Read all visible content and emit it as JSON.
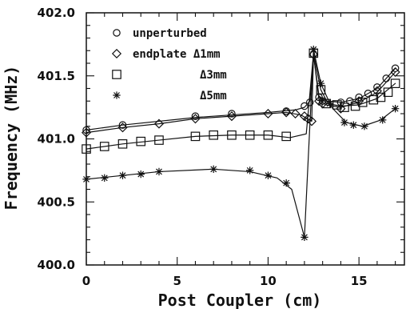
{
  "chart_data": {
    "type": "line",
    "title": "",
    "xlabel": "Post Coupler (cm)",
    "ylabel": "Frequency (MHz)",
    "xlim": [
      0,
      17.5
    ],
    "ylim": [
      400.0,
      402.0
    ],
    "x_ticks": [
      0,
      5,
      10,
      15
    ],
    "x_tick_labels": [
      "0",
      "5",
      "10",
      "15"
    ],
    "y_ticks": [
      400.0,
      400.5,
      401.0,
      401.5,
      402.0
    ],
    "y_tick_labels": [
      "400.0",
      "400.5",
      "401.0",
      "401.5",
      "402.0"
    ],
    "grid": false,
    "legend_position": "top-left",
    "series": [
      {
        "name": "unperturbed",
        "legend_label": "unperturbed",
        "marker": "circle",
        "points": [
          {
            "x": 0,
            "y": 401.07
          },
          {
            "x": 2,
            "y": 401.11
          },
          {
            "x": 6,
            "y": 401.18
          },
          {
            "x": 8,
            "y": 401.2
          },
          {
            "x": 11,
            "y": 401.22
          },
          {
            "x": 12,
            "y": 401.26
          },
          {
            "x": 12.3,
            "y": 401.29
          },
          {
            "x": 12.5,
            "y": 401.67
          },
          {
            "x": 12.8,
            "y": 401.33
          },
          {
            "x": 13,
            "y": 401.3
          },
          {
            "x": 14,
            "y": 401.29
          },
          {
            "x": 14.5,
            "y": 401.3
          },
          {
            "x": 15,
            "y": 401.33
          },
          {
            "x": 15.5,
            "y": 401.36
          },
          {
            "x": 16,
            "y": 401.41
          },
          {
            "x": 16.5,
            "y": 401.48
          },
          {
            "x": 17,
            "y": 401.56
          }
        ],
        "smooth_curve": [
          {
            "x": 0,
            "y": 401.07
          },
          {
            "x": 2,
            "y": 401.11
          },
          {
            "x": 6,
            "y": 401.17
          },
          {
            "x": 8,
            "y": 401.19
          },
          {
            "x": 10,
            "y": 401.21
          },
          {
            "x": 11.5,
            "y": 401.23
          },
          {
            "x": 12,
            "y": 401.25
          },
          {
            "x": 12.3,
            "y": 401.3
          },
          {
            "x": 12.5,
            "y": 401.67
          },
          {
            "x": 12.8,
            "y": 401.34
          },
          {
            "x": 13.2,
            "y": 401.3
          },
          {
            "x": 14,
            "y": 401.29
          },
          {
            "x": 15,
            "y": 401.32
          },
          {
            "x": 16,
            "y": 401.4
          },
          {
            "x": 17,
            "y": 401.56
          }
        ]
      },
      {
        "name": "endplate Δ1mm",
        "legend_label": "endplate Δ1mm",
        "marker": "diamond",
        "points": [
          {
            "x": 0,
            "y": 401.05
          },
          {
            "x": 2,
            "y": 401.09
          },
          {
            "x": 4,
            "y": 401.12
          },
          {
            "x": 6,
            "y": 401.16
          },
          {
            "x": 8,
            "y": 401.18
          },
          {
            "x": 10,
            "y": 401.2
          },
          {
            "x": 11,
            "y": 401.21
          },
          {
            "x": 11.5,
            "y": 401.2
          },
          {
            "x": 12,
            "y": 401.18
          },
          {
            "x": 12.2,
            "y": 401.16
          },
          {
            "x": 12.4,
            "y": 401.14
          },
          {
            "x": 12.5,
            "y": 401.67
          },
          {
            "x": 12.8,
            "y": 401.3
          },
          {
            "x": 13,
            "y": 401.28
          },
          {
            "x": 14,
            "y": 401.24
          },
          {
            "x": 15,
            "y": 401.3
          },
          {
            "x": 16,
            "y": 401.38
          },
          {
            "x": 17,
            "y": 401.53
          }
        ],
        "smooth_curve": [
          {
            "x": 0,
            "y": 401.05
          },
          {
            "x": 2,
            "y": 401.09
          },
          {
            "x": 4,
            "y": 401.12
          },
          {
            "x": 6,
            "y": 401.16
          },
          {
            "x": 8,
            "y": 401.18
          },
          {
            "x": 10,
            "y": 401.2
          },
          {
            "x": 11,
            "y": 401.21
          },
          {
            "x": 11.8,
            "y": 401.19
          },
          {
            "x": 12.4,
            "y": 401.14
          },
          {
            "x": 12.5,
            "y": 401.67
          },
          {
            "x": 12.8,
            "y": 401.31
          },
          {
            "x": 13.2,
            "y": 401.27
          },
          {
            "x": 14,
            "y": 401.25
          },
          {
            "x": 15,
            "y": 401.29
          },
          {
            "x": 16,
            "y": 401.37
          },
          {
            "x": 17,
            "y": 401.53
          }
        ]
      },
      {
        "name": "Δ3mm",
        "legend_label": "Δ3mm",
        "marker": "square",
        "points": [
          {
            "x": 0,
            "y": 400.92
          },
          {
            "x": 1,
            "y": 400.94
          },
          {
            "x": 2,
            "y": 400.96
          },
          {
            "x": 3,
            "y": 400.98
          },
          {
            "x": 4,
            "y": 400.99
          },
          {
            "x": 6,
            "y": 401.02
          },
          {
            "x": 7,
            "y": 401.03
          },
          {
            "x": 8,
            "y": 401.03
          },
          {
            "x": 9,
            "y": 401.03
          },
          {
            "x": 10,
            "y": 401.03
          },
          {
            "x": 11,
            "y": 401.02
          },
          {
            "x": 12.5,
            "y": 401.68
          },
          {
            "x": 12.9,
            "y": 401.39
          },
          {
            "x": 13.2,
            "y": 401.28
          },
          {
            "x": 13.8,
            "y": 401.27
          },
          {
            "x": 14.2,
            "y": 401.25
          },
          {
            "x": 14.8,
            "y": 401.26
          },
          {
            "x": 15.2,
            "y": 401.29
          },
          {
            "x": 15.8,
            "y": 401.31
          },
          {
            "x": 16.2,
            "y": 401.33
          },
          {
            "x": 16.6,
            "y": 401.37
          },
          {
            "x": 17,
            "y": 401.44
          }
        ],
        "smooth_curve": [
          {
            "x": 0,
            "y": 400.92
          },
          {
            "x": 2,
            "y": 400.96
          },
          {
            "x": 4,
            "y": 400.99
          },
          {
            "x": 6,
            "y": 401.02
          },
          {
            "x": 8,
            "y": 401.03
          },
          {
            "x": 10,
            "y": 401.03
          },
          {
            "x": 11.2,
            "y": 401.01
          },
          {
            "x": 12.1,
            "y": 401.04
          },
          {
            "x": 12.5,
            "y": 401.68
          },
          {
            "x": 12.9,
            "y": 401.39
          },
          {
            "x": 13.3,
            "y": 401.28
          },
          {
            "x": 14,
            "y": 401.26
          },
          {
            "x": 15,
            "y": 401.27
          },
          {
            "x": 16,
            "y": 401.32
          },
          {
            "x": 17,
            "y": 401.44
          }
        ]
      },
      {
        "name": "Δ5mm",
        "legend_label": "Δ5mm",
        "marker": "asterisk",
        "points": [
          {
            "x": 0,
            "y": 400.68
          },
          {
            "x": 1,
            "y": 400.69
          },
          {
            "x": 2,
            "y": 400.71
          },
          {
            "x": 3,
            "y": 400.72
          },
          {
            "x": 4,
            "y": 400.74
          },
          {
            "x": 7,
            "y": 400.76
          },
          {
            "x": 9,
            "y": 400.75
          },
          {
            "x": 10,
            "y": 400.71
          },
          {
            "x": 11,
            "y": 400.65
          },
          {
            "x": 12,
            "y": 400.22
          },
          {
            "x": 12.5,
            "y": 401.71
          },
          {
            "x": 12.9,
            "y": 401.44
          },
          {
            "x": 13.4,
            "y": 401.28
          },
          {
            "x": 14.2,
            "y": 401.13
          },
          {
            "x": 14.7,
            "y": 401.11
          },
          {
            "x": 15.3,
            "y": 401.1
          },
          {
            "x": 16.3,
            "y": 401.15
          },
          {
            "x": 17,
            "y": 401.24
          }
        ],
        "smooth_curve": [
          {
            "x": 0,
            "y": 400.68
          },
          {
            "x": 2,
            "y": 400.71
          },
          {
            "x": 4,
            "y": 400.74
          },
          {
            "x": 7,
            "y": 400.76
          },
          {
            "x": 9,
            "y": 400.74
          },
          {
            "x": 10.5,
            "y": 400.69
          },
          {
            "x": 11.3,
            "y": 400.6
          },
          {
            "x": 12,
            "y": 400.22
          },
          {
            "x": 12.5,
            "y": 401.71
          },
          {
            "x": 12.9,
            "y": 401.44
          },
          {
            "x": 13.5,
            "y": 401.25
          },
          {
            "x": 14.3,
            "y": 401.13
          },
          {
            "x": 15.2,
            "y": 401.1
          },
          {
            "x": 16.2,
            "y": 401.15
          },
          {
            "x": 17,
            "y": 401.24
          }
        ]
      }
    ]
  }
}
